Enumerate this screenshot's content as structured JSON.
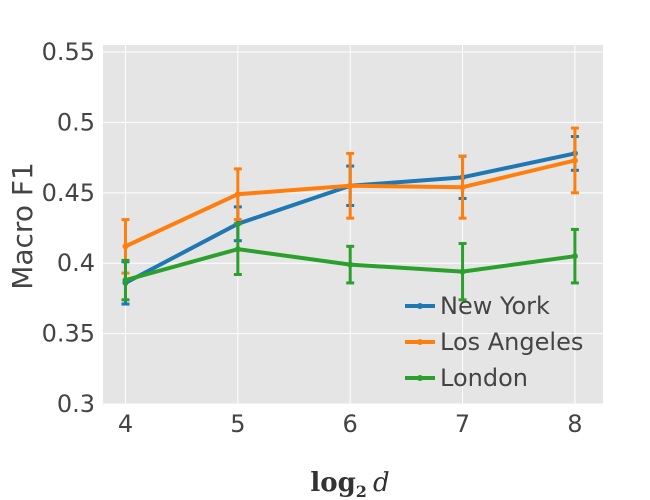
{
  "chart_data": {
    "type": "line",
    "title": "",
    "ylabel": "Macro F1",
    "xlabel": {
      "main": "log",
      "subscript": "2",
      "variable": "d"
    },
    "x": [
      4,
      5,
      6,
      7,
      8
    ],
    "xlim": [
      3.8,
      8.25
    ],
    "ylim": [
      0.3,
      0.555
    ],
    "yticks": [
      0.3,
      0.35,
      0.4,
      0.45,
      0.5,
      0.55
    ],
    "ytick_labels": [
      "0.3",
      "0.35",
      "0.4",
      "0.45",
      "0.5",
      "0.55"
    ],
    "xtick_labels": [
      "4",
      "5",
      "6",
      "7",
      "8"
    ],
    "grid": true,
    "legend_position": "bottom-right",
    "series": [
      {
        "name": "New York",
        "color": "#1f77b4",
        "values": [
          0.386,
          0.428,
          0.455,
          0.461,
          0.478
        ],
        "error": [
          0.015,
          0.012,
          0.014,
          0.015,
          0.012
        ]
      },
      {
        "name": "Los Angeles",
        "color": "#ff7f0e",
        "values": [
          0.412,
          0.449,
          0.455,
          0.454,
          0.473
        ],
        "error": [
          0.019,
          0.018,
          0.023,
          0.022,
          0.023
        ]
      },
      {
        "name": "London",
        "color": "#2ca02c",
        "values": [
          0.388,
          0.41,
          0.399,
          0.394,
          0.405
        ],
        "error": [
          0.014,
          0.018,
          0.013,
          0.02,
          0.019
        ]
      }
    ]
  }
}
